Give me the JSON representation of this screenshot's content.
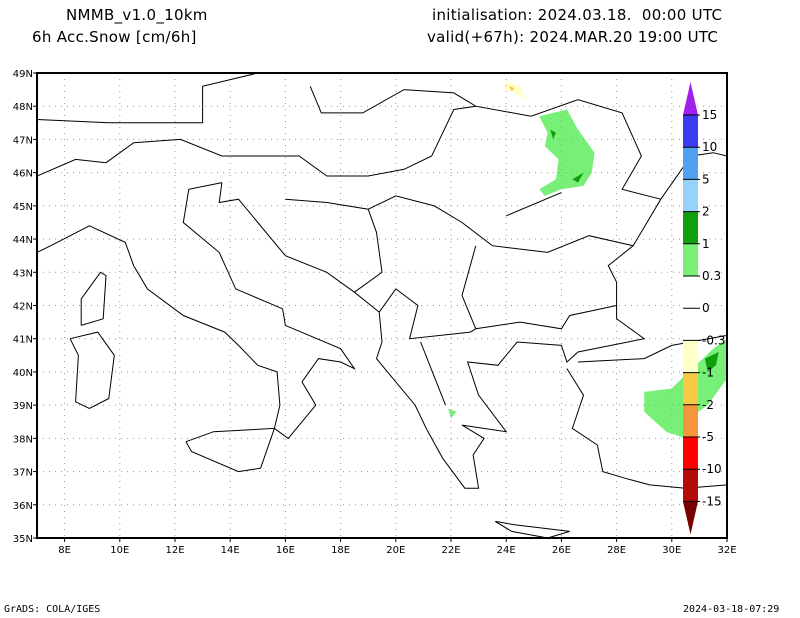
{
  "header": {
    "model": "NMMB_v1.0_10km",
    "variable": "6h Acc.Snow [cm/6h]",
    "initialisation": "initialisation: 2024.03.18.  00:00 UTC",
    "valid": "valid(+67h): 2024.MAR.20 19:00 UTC"
  },
  "map": {
    "lon_labels": [
      "8E",
      "10E",
      "12E",
      "14E",
      "16E",
      "18E",
      "20E",
      "22E",
      "24E",
      "26E",
      "28E",
      "30E",
      "32E"
    ],
    "lon_values": [
      8,
      10,
      12,
      14,
      16,
      18,
      20,
      22,
      24,
      26,
      28,
      30,
      32
    ],
    "lat_labels": [
      "35N",
      "36N",
      "37N",
      "38N",
      "39N",
      "40N",
      "41N",
      "42N",
      "43N",
      "44N",
      "45N",
      "46N",
      "47N",
      "48N",
      "49N"
    ],
    "lat_values": [
      35,
      36,
      37,
      38,
      39,
      40,
      41,
      42,
      43,
      44,
      45,
      46,
      47,
      48,
      49
    ],
    "lon_range": [
      7,
      32
    ],
    "lat_range": [
      35,
      49
    ]
  },
  "colorbar": {
    "labels": [
      "15",
      "10",
      "5",
      "2",
      "1",
      "0.3",
      "0",
      "-0.3",
      "-1",
      "-2",
      "-5",
      "-10",
      "-15"
    ],
    "colors": [
      "#a020f0",
      "#3c3cf0",
      "#50a0f0",
      "#96d2fa",
      "#0f9f0f",
      "#78f078",
      "#ffffff",
      "#ffffc8",
      "#f5c846",
      "#f5963c",
      "#ff0000",
      "#b40a0a",
      "#780000"
    ]
  },
  "footer": {
    "left": "GrADS: COLA/IGES",
    "right": "2024-03-18-07:29"
  }
}
